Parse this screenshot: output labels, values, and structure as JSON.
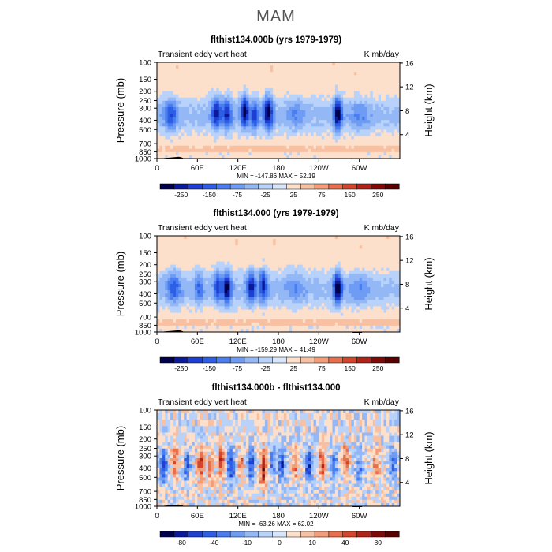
{
  "main_title": "MAM",
  "colors": {
    "palette": [
      "#00004d",
      "#0a1a9a",
      "#1e3fd1",
      "#2d5fe6",
      "#4a7ef0",
      "#6e9cf4",
      "#94b8f6",
      "#b9d2fa",
      "#d8e6fb",
      "#fde0cc",
      "#f8c0a0",
      "#f39c78",
      "#e86e4c",
      "#d4462c",
      "#b02418",
      "#800a08",
      "#5a0000"
    ],
    "land": "#000000"
  },
  "chart_data": [
    {
      "type": "heatmap",
      "title": "flthist134.000b (yrs 1979-1979)",
      "left_label": "Transient eddy vert heat",
      "right_label": "K mb/day",
      "ylabel": "Pressure (mb)",
      "y2label": "Height (km)",
      "x_ticks": [
        "0",
        "60E",
        "120E",
        "180",
        "120W",
        "60W"
      ],
      "x_tick_lon": [
        0,
        60,
        120,
        180,
        240,
        300
      ],
      "xlim": [
        0,
        360
      ],
      "y_ticks": [
        "100",
        "150",
        "200",
        "250",
        "300",
        "400",
        "500",
        "700",
        "850",
        "1000"
      ],
      "y_tick_p": [
        100,
        150,
        200,
        250,
        300,
        400,
        500,
        700,
        850,
        1000
      ],
      "ylim": [
        100,
        1000
      ],
      "y2_ticks": [
        "4",
        "8",
        "12",
        "16"
      ],
      "y2_tick_km": [
        4,
        8,
        12,
        16
      ],
      "stats": "MIN = -147.86   MAX =  52.19",
      "colorbar_labels": [
        "-250",
        "-150",
        "-75",
        "-25",
        "25",
        "75",
        "150",
        "250"
      ],
      "colorbar_levels": [
        -300,
        -250,
        -200,
        -150,
        -100,
        -75,
        -50,
        -25,
        0,
        25,
        50,
        75,
        100,
        150,
        200,
        250,
        300
      ],
      "cores": [
        {
          "lon": 20,
          "p": 350,
          "amp": -2.6,
          "w": 10
        },
        {
          "lon": 88,
          "p": 330,
          "amp": -3.8,
          "w": 7
        },
        {
          "lon": 104,
          "p": 340,
          "amp": -3.4,
          "w": 7
        },
        {
          "lon": 130,
          "p": 320,
          "amp": -4.5,
          "w": 6
        },
        {
          "lon": 145,
          "p": 360,
          "amp": -3.0,
          "w": 6
        },
        {
          "lon": 165,
          "p": 330,
          "amp": -4.5,
          "w": 7
        },
        {
          "lon": 205,
          "p": 340,
          "amp": -1.2,
          "w": 14
        },
        {
          "lon": 268,
          "p": 340,
          "amp": -4.8,
          "w": 6
        },
        {
          "lon": 300,
          "p": 350,
          "amp": -1.1,
          "w": 16
        }
      ]
    },
    {
      "type": "heatmap",
      "title": "flthist134.000 (yrs 1979-1979)",
      "left_label": "Transient eddy vert heat",
      "right_label": "K mb/day",
      "ylabel": "Pressure (mb)",
      "y2label": "Height (km)",
      "x_ticks": [
        "0",
        "60E",
        "120E",
        "180",
        "120W",
        "60W"
      ],
      "x_tick_lon": [
        0,
        60,
        120,
        180,
        240,
        300
      ],
      "xlim": [
        0,
        360
      ],
      "y_ticks": [
        "100",
        "150",
        "200",
        "250",
        "300",
        "400",
        "500",
        "700",
        "850",
        "1000"
      ],
      "y_tick_p": [
        100,
        150,
        200,
        250,
        300,
        400,
        500,
        700,
        850,
        1000
      ],
      "ylim": [
        100,
        1000
      ],
      "y2_ticks": [
        "4",
        "8",
        "12",
        "16"
      ],
      "y2_tick_km": [
        4,
        8,
        12,
        16
      ],
      "stats": "MIN = -159.29   MAX =  41.49",
      "colorbar_labels": [
        "-250",
        "-150",
        "-75",
        "-25",
        "25",
        "75",
        "150",
        "250"
      ],
      "colorbar_levels": [
        -300,
        -250,
        -200,
        -150,
        -100,
        -75,
        -50,
        -25,
        0,
        25,
        50,
        75,
        100,
        150,
        200,
        250,
        300
      ],
      "cores": [
        {
          "lon": 25,
          "p": 340,
          "amp": -2.4,
          "w": 10
        },
        {
          "lon": 62,
          "p": 340,
          "amp": -2.0,
          "w": 7
        },
        {
          "lon": 90,
          "p": 330,
          "amp": -3.0,
          "w": 6
        },
        {
          "lon": 104,
          "p": 350,
          "amp": -4.6,
          "w": 6
        },
        {
          "lon": 140,
          "p": 340,
          "amp": -3.6,
          "w": 7
        },
        {
          "lon": 158,
          "p": 330,
          "amp": -3.4,
          "w": 6
        },
        {
          "lon": 205,
          "p": 350,
          "amp": -1.2,
          "w": 14
        },
        {
          "lon": 268,
          "p": 350,
          "amp": -4.8,
          "w": 6
        },
        {
          "lon": 300,
          "p": 360,
          "amp": -1.1,
          "w": 16
        }
      ]
    },
    {
      "type": "heatmap",
      "title": "flthist134.000b - flthist134.000",
      "left_label": "Transient eddy vert heat",
      "right_label": "K mb/day",
      "ylabel": "Pressure (mb)",
      "y2label": "Height (km)",
      "x_ticks": [
        "0",
        "60E",
        "120E",
        "180",
        "120W",
        "60W"
      ],
      "x_tick_lon": [
        0,
        60,
        120,
        180,
        240,
        300
      ],
      "xlim": [
        0,
        360
      ],
      "y_ticks": [
        "100",
        "150",
        "200",
        "250",
        "300",
        "400",
        "500",
        "700",
        "850",
        "1000"
      ],
      "y_tick_p": [
        100,
        150,
        200,
        250,
        300,
        400,
        500,
        700,
        850,
        1000
      ],
      "ylim": [
        100,
        1000
      ],
      "y2_ticks": [
        "4",
        "8",
        "12",
        "16"
      ],
      "y2_tick_km": [
        4,
        8,
        12,
        16
      ],
      "stats": "MIN = -63.26   MAX =  62.02",
      "colorbar_labels": [
        "-80",
        "-40",
        "-10",
        "0",
        "10",
        "40",
        "80"
      ],
      "colorbar_levels": [
        -100,
        -80,
        -60,
        -40,
        -20,
        -10,
        -5,
        -1,
        0,
        1,
        5,
        10,
        20,
        40,
        60,
        80,
        100
      ],
      "cores": [
        {
          "lon": 10,
          "p": 380,
          "amp": -2.6,
          "w": 5
        },
        {
          "lon": 28,
          "p": 330,
          "amp": 2.0,
          "w": 5
        },
        {
          "lon": 45,
          "p": 380,
          "amp": -2.2,
          "w": 5
        },
        {
          "lon": 65,
          "p": 360,
          "amp": 2.4,
          "w": 5
        },
        {
          "lon": 80,
          "p": 380,
          "amp": 1.8,
          "w": 4
        },
        {
          "lon": 95,
          "p": 330,
          "amp": 2.8,
          "w": 4
        },
        {
          "lon": 110,
          "p": 380,
          "amp": -3.0,
          "w": 5
        },
        {
          "lon": 125,
          "p": 360,
          "amp": 1.8,
          "w": 4
        },
        {
          "lon": 140,
          "p": 380,
          "amp": -2.4,
          "w": 5
        },
        {
          "lon": 158,
          "p": 400,
          "amp": 3.2,
          "w": 5
        },
        {
          "lon": 172,
          "p": 330,
          "amp": -2.0,
          "w": 4
        },
        {
          "lon": 185,
          "p": 360,
          "amp": -2.6,
          "w": 5
        },
        {
          "lon": 205,
          "p": 360,
          "amp": 1.6,
          "w": 5
        },
        {
          "lon": 225,
          "p": 380,
          "amp": -2.8,
          "w": 5
        },
        {
          "lon": 245,
          "p": 360,
          "amp": 2.2,
          "w": 5
        },
        {
          "lon": 262,
          "p": 380,
          "amp": -2.0,
          "w": 5
        },
        {
          "lon": 280,
          "p": 330,
          "amp": 1.8,
          "w": 5
        },
        {
          "lon": 300,
          "p": 400,
          "amp": -1.6,
          "w": 6
        },
        {
          "lon": 325,
          "p": 360,
          "amp": 1.2,
          "w": 8
        },
        {
          "lon": 350,
          "p": 380,
          "amp": -1.4,
          "w": 8
        }
      ]
    }
  ]
}
